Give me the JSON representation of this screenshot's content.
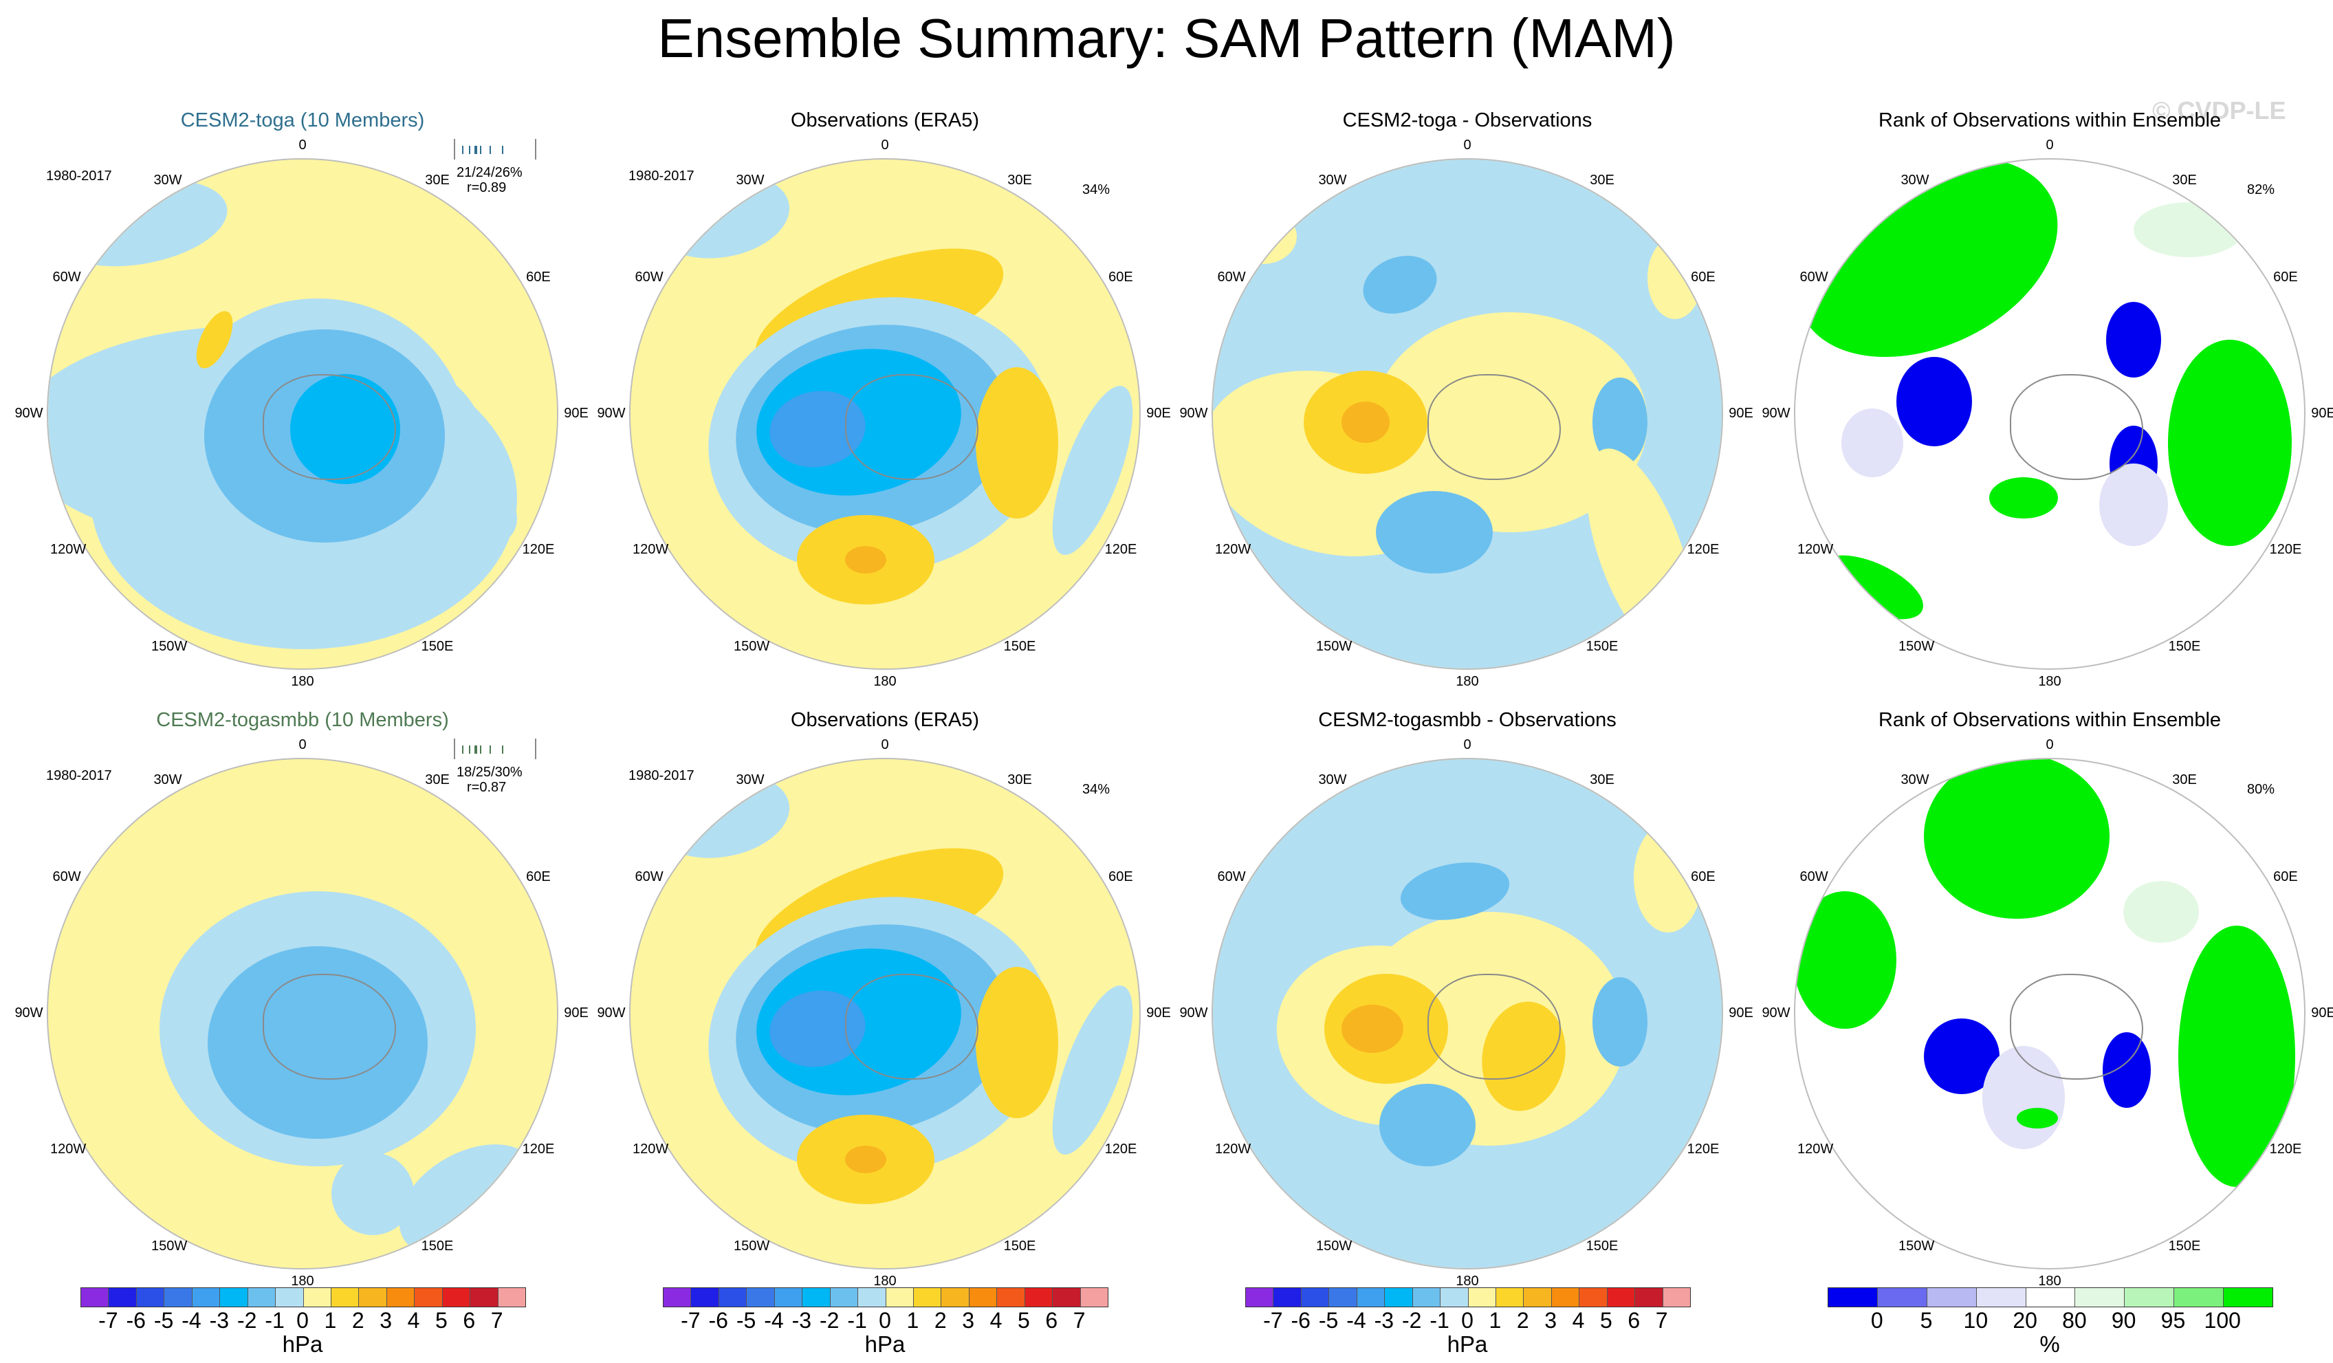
{
  "title": "Ensemble Summary: SAM Pattern (MAM)",
  "watermark": "© CVDP-LE",
  "colors": {
    "neg7": "#8a2be2",
    "neg6": "#1f1fe8",
    "neg5": "#2a50e8",
    "neg4": "#3a78e8",
    "neg3": "#3ea0ee",
    "neg2": "#00b7f5",
    "neg1": "#6cc0ee",
    "neg0": "#b3dff2",
    "pos0": "#fdf5a0",
    "pos1": "#fcd52b",
    "pos2": "#f7b51f",
    "pos3": "#f78c0e",
    "pos4": "#f2591a",
    "pos5": "#e3201f",
    "pos6": "#c71c2b",
    "pos7": "#f5a0a0",
    "rank_0": "#0000f0",
    "rank_5": "#6a6af0",
    "rank_10": "#b8b8f2",
    "rank_20": "#e2e2f8",
    "rank_mid": "#ffffff",
    "rank_80": "#e3f8e3",
    "rank_90": "#b8f5b8",
    "rank_95": "#7cf07c",
    "rank_100": "#00ee00",
    "title_toga": "#2e6f8e",
    "title_togasmbb": "#4e7a52"
  },
  "rows": [
    {
      "panels": [
        {
          "title": "CESM2-toga (10 Members)",
          "period": "1980-2017",
          "stats": "21/24/26%",
          "corr": "r=0.89"
        },
        {
          "title": "Observations (ERA5)",
          "period": "1980-2017",
          "percent": "34%"
        },
        {
          "title": "CESM2-toga - Observations"
        },
        {
          "title": "Rank of Observations within Ensemble",
          "percent": "82%"
        }
      ]
    },
    {
      "panels": [
        {
          "title": "CESM2-togasmbb (10 Members)",
          "period": "1980-2017",
          "stats": "18/25/30%",
          "corr": "r=0.87"
        },
        {
          "title": "Observations (ERA5)",
          "period": "1980-2017",
          "percent": "34%"
        },
        {
          "title": "CESM2-togasmbb - Observations"
        },
        {
          "title": "Rank of Observations within Ensemble",
          "percent": "80%"
        }
      ]
    }
  ],
  "lon_labels": [
    "0",
    "30E",
    "60E",
    "90E",
    "120E",
    "150E",
    "180",
    "150W",
    "120W",
    "90W",
    "60W",
    "30W"
  ],
  "chart_data": {
    "type": "heatmap",
    "title": "Ensemble Summary: SAM Pattern (MAM)",
    "projection": "south polar stereographic",
    "colorbar_hpa": {
      "label": "hPa",
      "ticks": [
        "-7",
        "-6",
        "-5",
        "-4",
        "-3",
        "-2",
        "-1",
        "0",
        "1",
        "2",
        "3",
        "4",
        "5",
        "6",
        "7"
      ],
      "levels": [
        -7,
        -6,
        -5,
        -4,
        -3,
        -2,
        -1,
        0,
        1,
        2,
        3,
        4,
        5,
        6,
        7
      ]
    },
    "colorbar_rank": {
      "label": "%",
      "ticks": [
        "0",
        "5",
        "10",
        "20",
        "80",
        "90",
        "95",
        "100"
      ],
      "levels": [
        0,
        5,
        10,
        20,
        80,
        90,
        95,
        100
      ]
    },
    "panels": [
      {
        "row": 1,
        "name": "CESM2-toga (10 Members)",
        "pattern_correlation": 0.89,
        "variance_explained": "21/24/26%",
        "units": "hPa"
      },
      {
        "row": 1,
        "name": "Observations (ERA5)",
        "variance_explained": "34%",
        "units": "hPa"
      },
      {
        "row": 1,
        "name": "CESM2-toga - Observations",
        "units": "hPa"
      },
      {
        "row": 1,
        "name": "Rank of Observations within Ensemble",
        "percent_area": "82%",
        "units": "%"
      },
      {
        "row": 2,
        "name": "CESM2-togasmbb (10 Members)",
        "pattern_correlation": 0.87,
        "variance_explained": "18/25/30%",
        "units": "hPa"
      },
      {
        "row": 2,
        "name": "Observations (ERA5)",
        "variance_explained": "34%",
        "units": "hPa"
      },
      {
        "row": 2,
        "name": "CESM2-togasmbb - Observations",
        "units": "hPa"
      },
      {
        "row": 2,
        "name": "Rank of Observations within Ensemble",
        "percent_area": "80%",
        "units": "%"
      }
    ]
  }
}
